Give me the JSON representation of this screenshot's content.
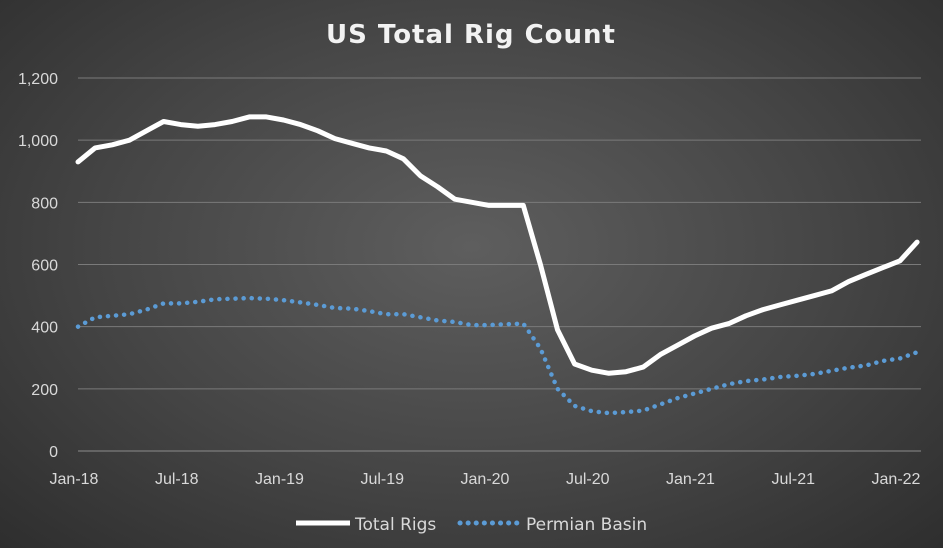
{
  "chart_data": {
    "type": "line",
    "title": "US Total Rig Count",
    "xlabel": "",
    "ylabel": "",
    "ylim": [
      0,
      1200
    ],
    "yticks": [
      "0",
      "200",
      "400",
      "600",
      "800",
      "1,000",
      "1,200"
    ],
    "ytick_values": [
      0,
      200,
      400,
      600,
      800,
      1000,
      1200
    ],
    "xtick_labels": [
      "Jan-18",
      "Jul-18",
      "Jan-19",
      "Jul-19",
      "Jan-20",
      "Jul-20",
      "Jan-21",
      "Jul-21",
      "Jan-22"
    ],
    "xtick_month_index": [
      0,
      6,
      12,
      18,
      24,
      30,
      36,
      42,
      48
    ],
    "x_month_index": [
      0,
      1,
      2,
      3,
      4,
      5,
      6,
      7,
      8,
      9,
      10,
      11,
      12,
      13,
      14,
      15,
      16,
      17,
      18,
      19,
      20,
      21,
      22,
      23,
      24,
      25,
      26,
      27,
      28,
      29,
      30,
      31,
      32,
      33,
      34,
      35,
      36,
      37,
      38,
      39,
      40,
      41,
      42,
      43,
      44,
      45,
      46,
      47,
      48,
      49
    ],
    "grid": true,
    "legend_position": "bottom",
    "series": [
      {
        "name": "Total Rigs",
        "color": "#ffffff",
        "style": "solid",
        "values": [
          930,
          975,
          985,
          1000,
          1030,
          1060,
          1050,
          1045,
          1050,
          1060,
          1075,
          1075,
          1065,
          1050,
          1030,
          1005,
          990,
          975,
          965,
          940,
          885,
          850,
          810,
          800,
          790,
          790,
          790,
          600,
          390,
          280,
          260,
          250,
          255,
          270,
          310,
          340,
          370,
          395,
          410,
          435,
          455,
          470,
          485,
          500,
          515,
          545,
          568,
          590,
          612,
          672
        ]
      },
      {
        "name": "Permian Basin",
        "color": "#5b9bd5",
        "style": "dotted",
        "values": [
          400,
          430,
          435,
          440,
          455,
          475,
          475,
          480,
          488,
          490,
          492,
          490,
          485,
          478,
          470,
          460,
          458,
          450,
          440,
          440,
          430,
          420,
          415,
          405,
          405,
          408,
          410,
          330,
          200,
          145,
          128,
          122,
          125,
          130,
          150,
          170,
          185,
          200,
          215,
          225,
          230,
          238,
          242,
          248,
          258,
          268,
          275,
          290,
          298,
          318
        ]
      }
    ]
  }
}
